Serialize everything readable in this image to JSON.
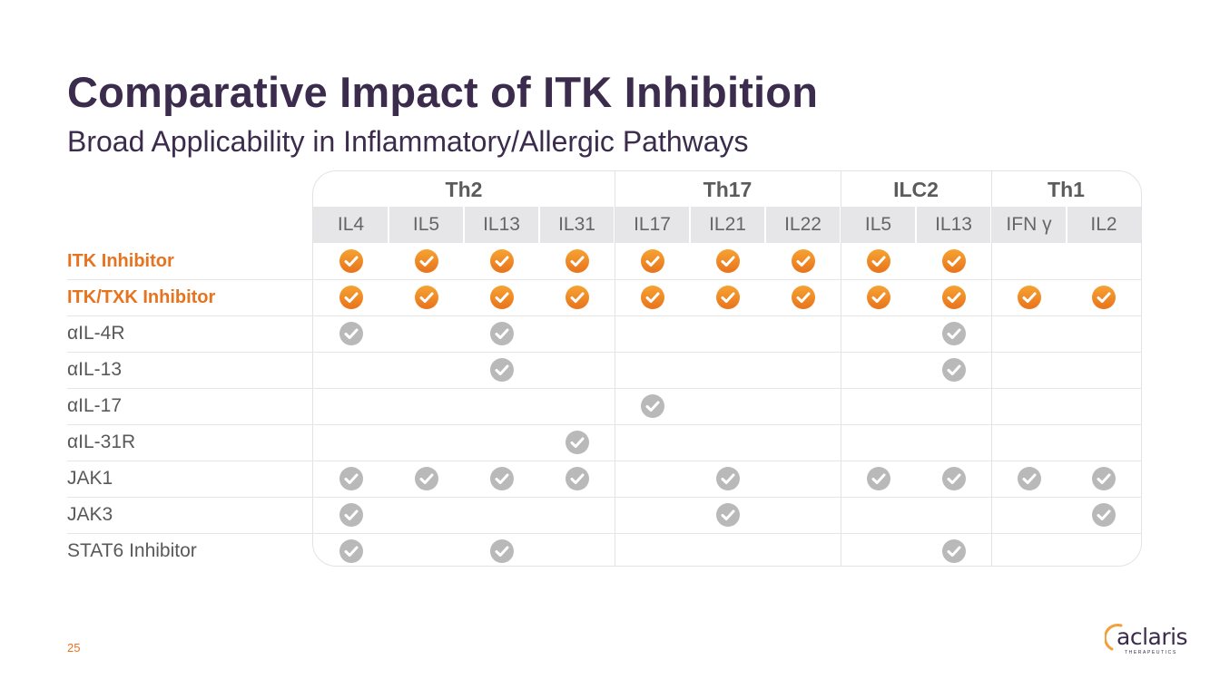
{
  "title": "Comparative Impact of ITK Inhibition",
  "subtitle": "Broad Applicability in Inflammatory/Allergic Pathways",
  "table": {
    "groups": [
      {
        "name": "Th2",
        "cols": [
          "IL4",
          "IL5",
          "IL13",
          "IL31"
        ]
      },
      {
        "name": "Th17",
        "cols": [
          "IL17",
          "IL21",
          "IL22"
        ]
      },
      {
        "name": "ILC2",
        "cols": [
          "IL5",
          "IL13"
        ]
      },
      {
        "name": "Th1",
        "cols": [
          "IFN γ",
          "IL2"
        ]
      }
    ],
    "rows": [
      {
        "label": "ITK Inhibitor",
        "highlight": true,
        "checks": [
          1,
          1,
          1,
          1,
          1,
          1,
          1,
          1,
          1,
          0,
          0
        ]
      },
      {
        "label": "ITK/TXK Inhibitor",
        "highlight": true,
        "checks": [
          1,
          1,
          1,
          1,
          1,
          1,
          1,
          1,
          1,
          1,
          1
        ]
      },
      {
        "label": "αIL-4R",
        "highlight": false,
        "checks": [
          1,
          0,
          1,
          0,
          0,
          0,
          0,
          0,
          1,
          0,
          0
        ]
      },
      {
        "label": "αIL-13",
        "highlight": false,
        "checks": [
          0,
          0,
          1,
          0,
          0,
          0,
          0,
          0,
          1,
          0,
          0
        ]
      },
      {
        "label": "αIL-17",
        "highlight": false,
        "checks": [
          0,
          0,
          0,
          0,
          1,
          0,
          0,
          0,
          0,
          0,
          0
        ]
      },
      {
        "label": "αIL-31R",
        "highlight": false,
        "checks": [
          0,
          0,
          0,
          1,
          0,
          0,
          0,
          0,
          0,
          0,
          0
        ]
      },
      {
        "label": "JAK1",
        "highlight": false,
        "checks": [
          1,
          1,
          1,
          1,
          0,
          1,
          0,
          1,
          1,
          1,
          1
        ]
      },
      {
        "label": "JAK3",
        "highlight": false,
        "checks": [
          1,
          0,
          0,
          0,
          0,
          1,
          0,
          0,
          0,
          0,
          1
        ]
      },
      {
        "label": "STAT6 Inhibitor",
        "highlight": false,
        "checks": [
          1,
          0,
          1,
          0,
          0,
          0,
          0,
          0,
          1,
          0,
          0
        ]
      }
    ]
  },
  "colors": {
    "title": "#3b2b4c",
    "accent": "#e8731f",
    "check_orange_top": "#f6a332",
    "check_orange_bottom": "#e9731c",
    "check_gray": "#b9b9b9"
  },
  "footer": {
    "page_number": "25",
    "logo_word": "aclaris",
    "logo_sub": "THERAPEUTICS"
  }
}
